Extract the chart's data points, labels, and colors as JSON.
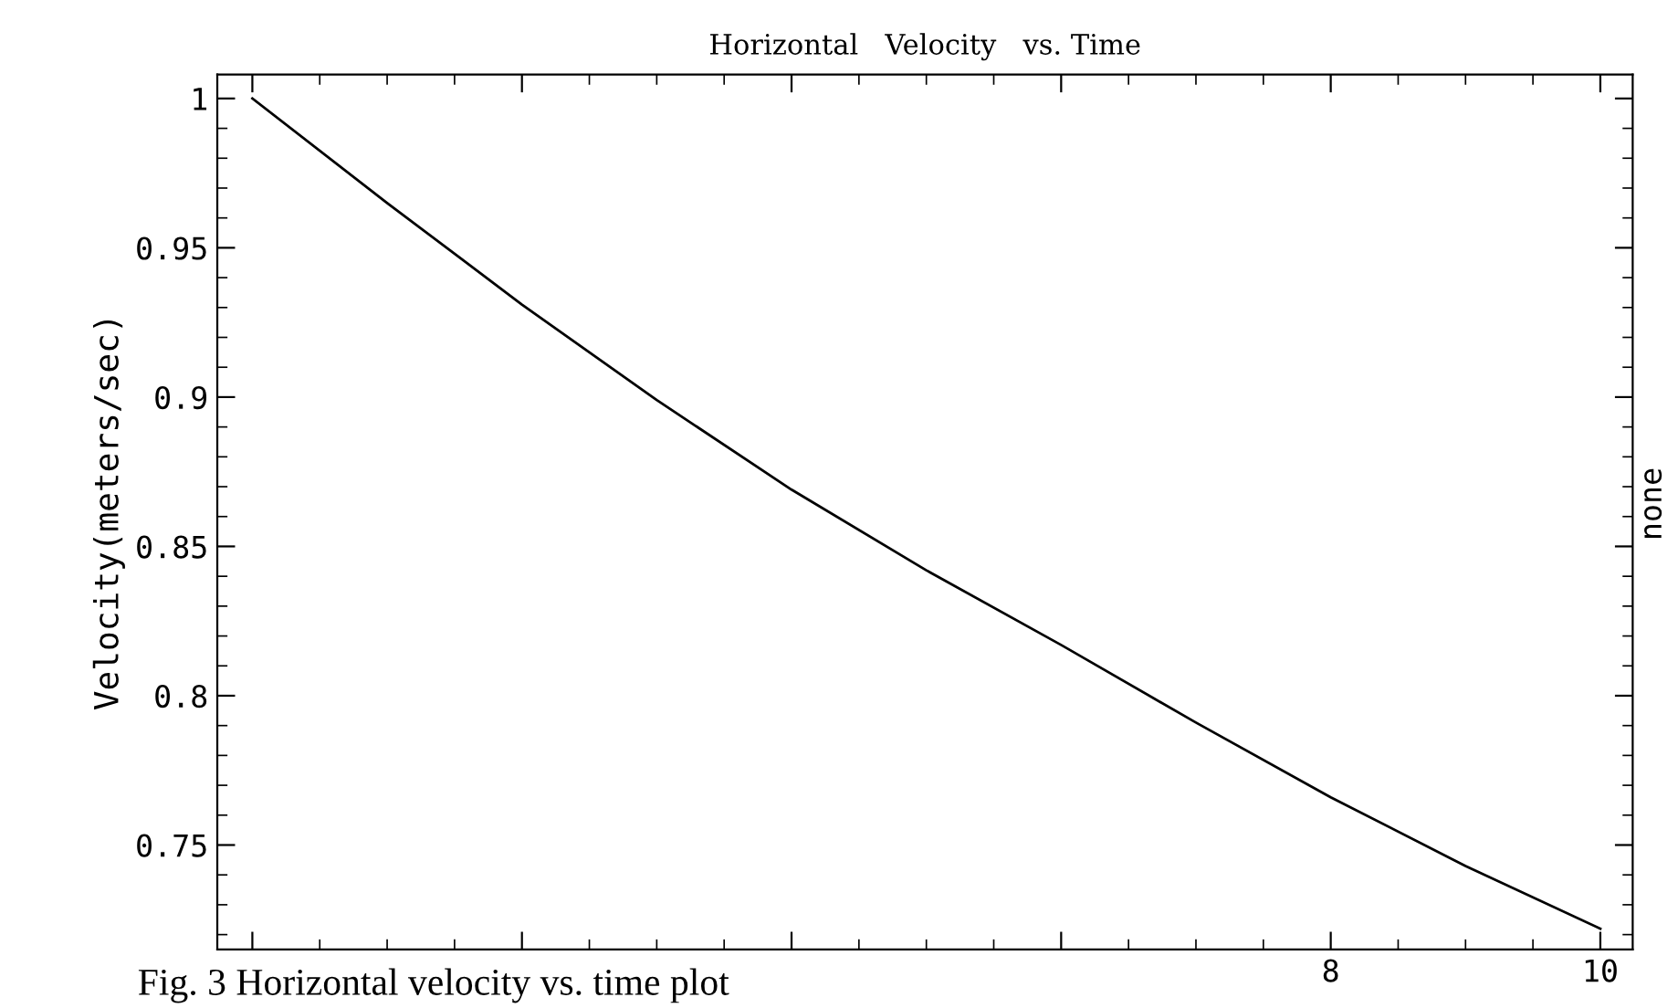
{
  "chart_data": {
    "type": "line",
    "title": "Horizontal   Velocity   vs. Time",
    "ylabel": "Velocity(meters/sec)",
    "x": [
      0,
      1,
      2,
      3,
      4,
      5,
      6,
      7,
      8,
      9,
      10
    ],
    "series": [
      {
        "color": "#000000",
        "values": [
          1,
          0.965,
          0.931,
          0.899,
          0.869,
          0.842,
          0.817,
          0.791,
          0.766,
          0.743,
          0.722
        ]
      }
    ],
    "xlim": [
      -0.26,
      10.24
    ],
    "xticks": [
      {
        "value": 0,
        "label": null
      },
      {
        "value": 2,
        "label": null
      },
      {
        "value": 4,
        "label": null
      },
      {
        "value": 6,
        "label": null
      },
      8,
      10
    ],
    "ylim": [
      0.715,
      1.008
    ],
    "yticks": [
      0.75,
      0.8,
      0.85,
      0.9,
      0.95,
      1
    ],
    "annotations": [
      "Fig. 3 Horizontal velocity vs. time plot",
      "none"
    ],
    "grid": false,
    "legend": false,
    "marker": "none",
    "line_style": "solid"
  }
}
